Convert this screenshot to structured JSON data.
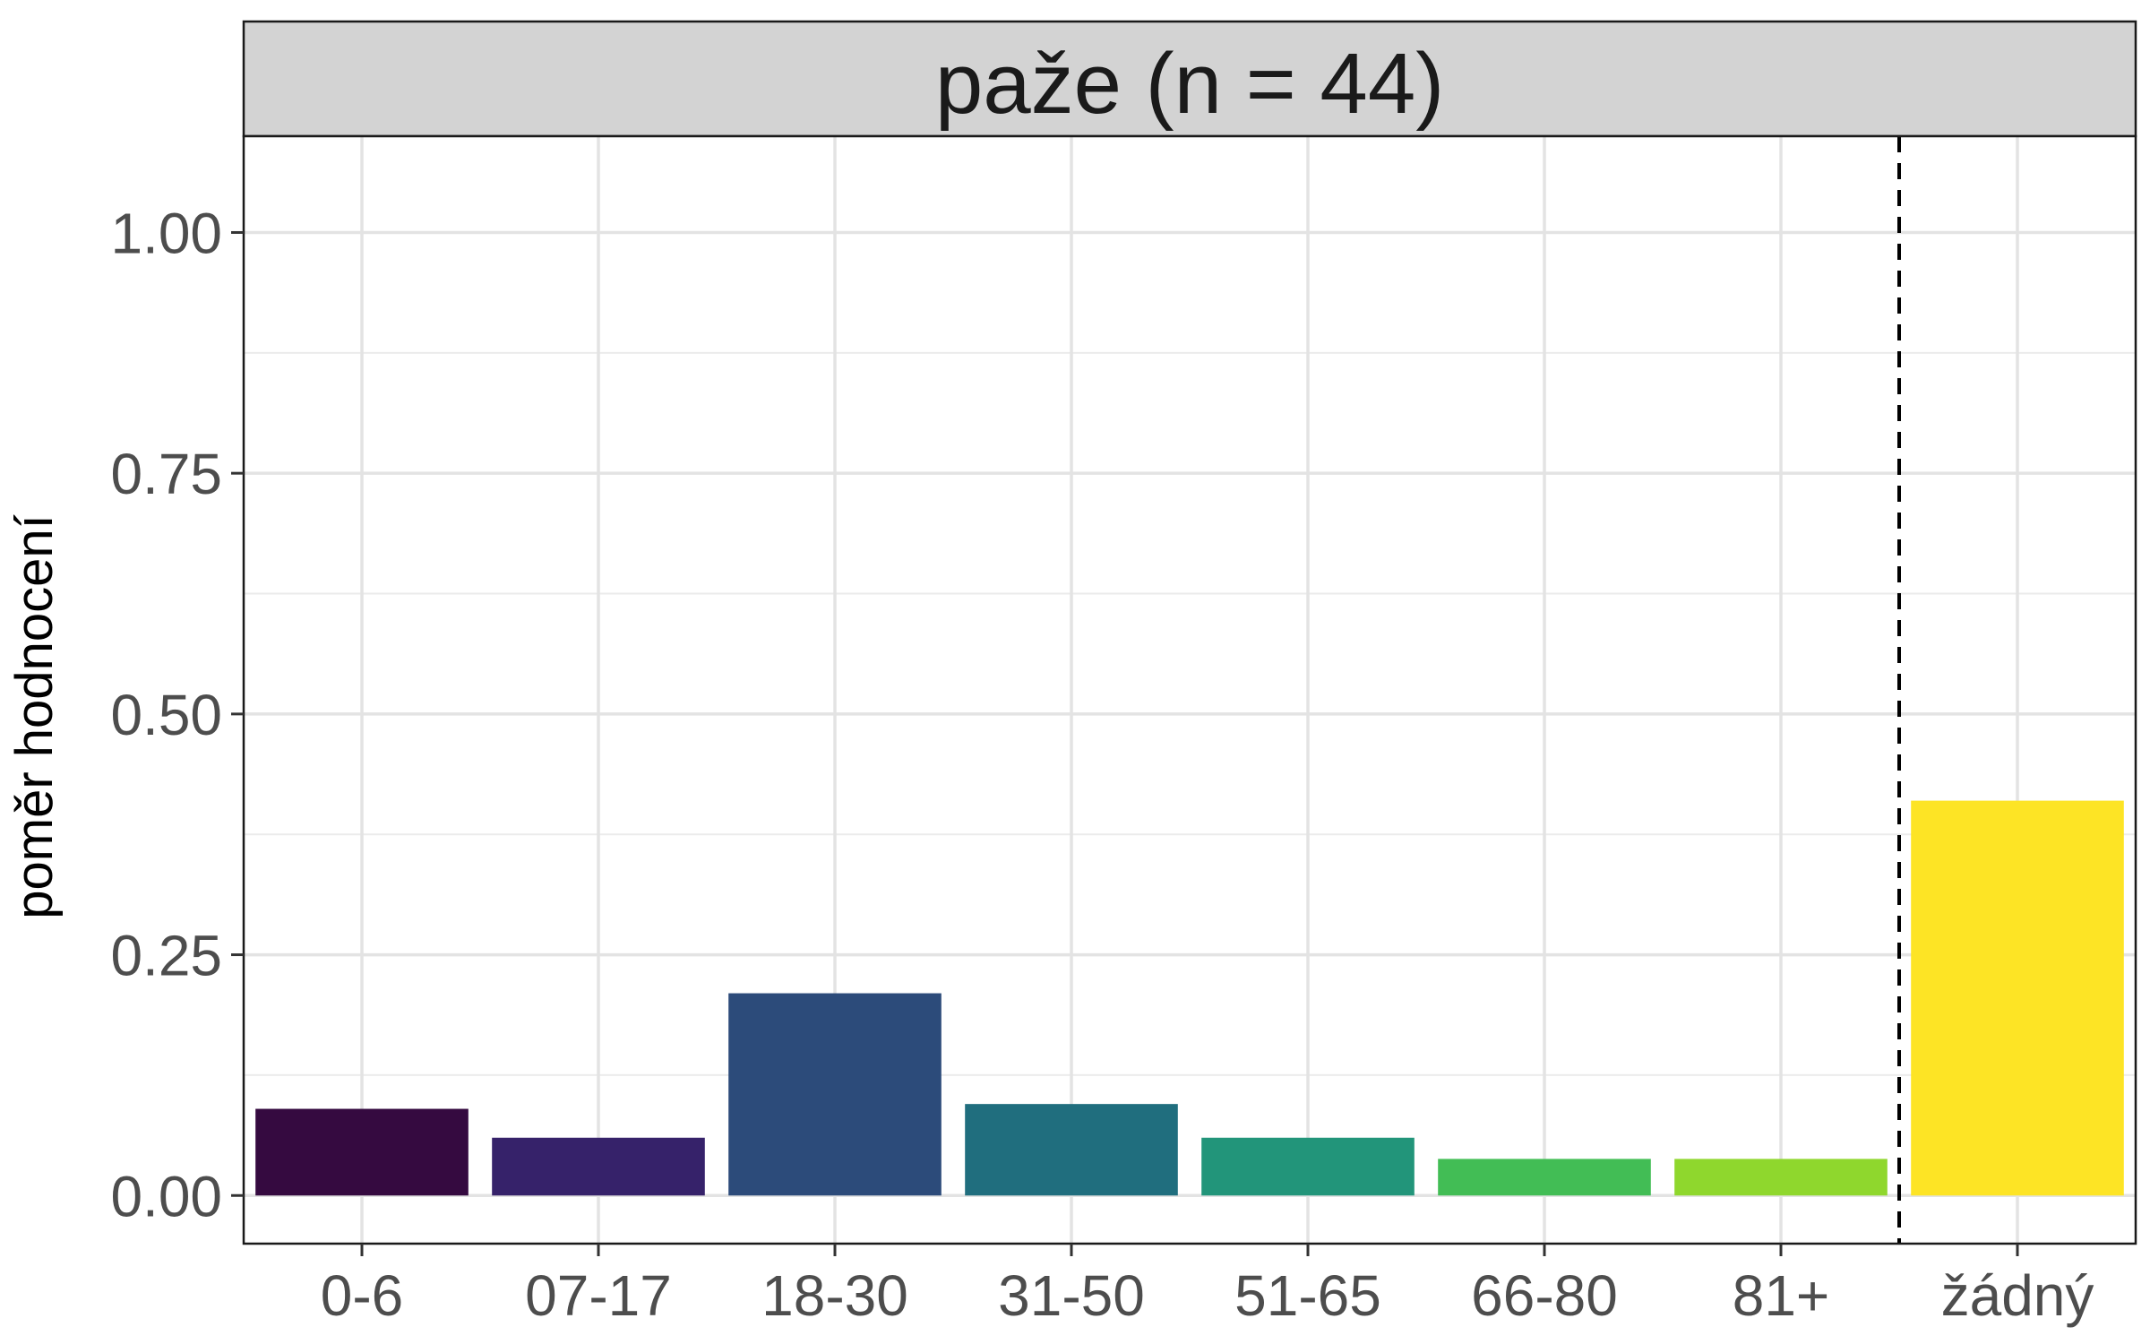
{
  "chart_data": {
    "type": "bar",
    "title": "paže (n = 44)",
    "xlabel": "",
    "ylabel": "poměr hodnocení",
    "categories": [
      "0-6",
      "07-17",
      "18-30",
      "31-50",
      "51-65",
      "66-80",
      "81+",
      "žádný"
    ],
    "values": [
      0.09,
      0.06,
      0.21,
      0.095,
      0.06,
      0.038,
      0.038,
      0.41
    ],
    "colors": [
      "#350a40",
      "#36226a",
      "#2c4b7a",
      "#206e7e",
      "#22957a",
      "#42bd55",
      "#8fd72d",
      "#fde425"
    ],
    "ylim": [
      -0.05,
      1.1
    ],
    "yticks": [
      0.0,
      0.25,
      0.5,
      0.75,
      1.0
    ],
    "ytick_labels": [
      "0.00",
      "0.25",
      "0.50",
      "0.75",
      "1.00"
    ],
    "grid": true,
    "legend": "none",
    "separator_after_category": "81+",
    "separator_style": "dashed"
  }
}
